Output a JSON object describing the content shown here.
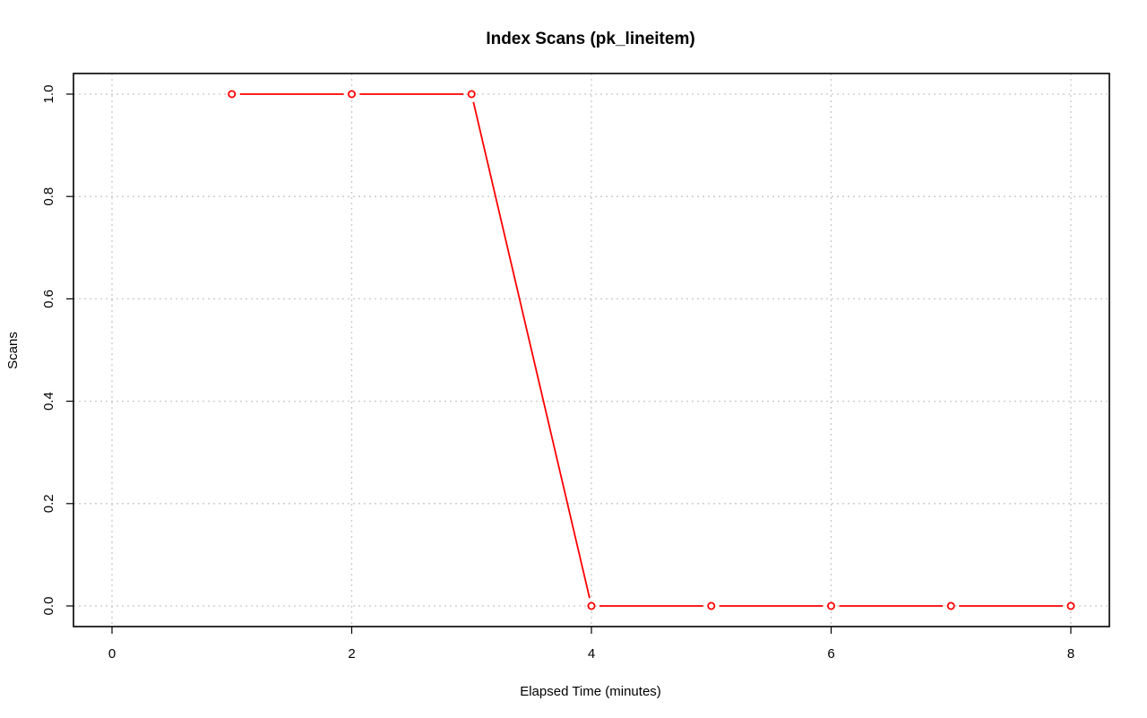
{
  "chart_data": {
    "type": "line",
    "title": "Index Scans (pk_lineitem)",
    "xlabel": "Elapsed Time (minutes)",
    "ylabel": "Scans",
    "xlim": [
      0,
      8
    ],
    "ylim": [
      0,
      1
    ],
    "x_ticks": [
      "0",
      "2",
      "4",
      "6",
      "8"
    ],
    "y_ticks": [
      "0.0",
      "0.2",
      "0.4",
      "0.6",
      "0.8",
      "1.0"
    ],
    "grid": true,
    "series": [
      {
        "x": [
          1,
          2,
          3,
          4,
          5,
          6,
          7,
          8
        ],
        "values": [
          1,
          1,
          1,
          0,
          0,
          0,
          0,
          0
        ],
        "color": "#ff0000",
        "marker": "open-circle"
      }
    ]
  }
}
